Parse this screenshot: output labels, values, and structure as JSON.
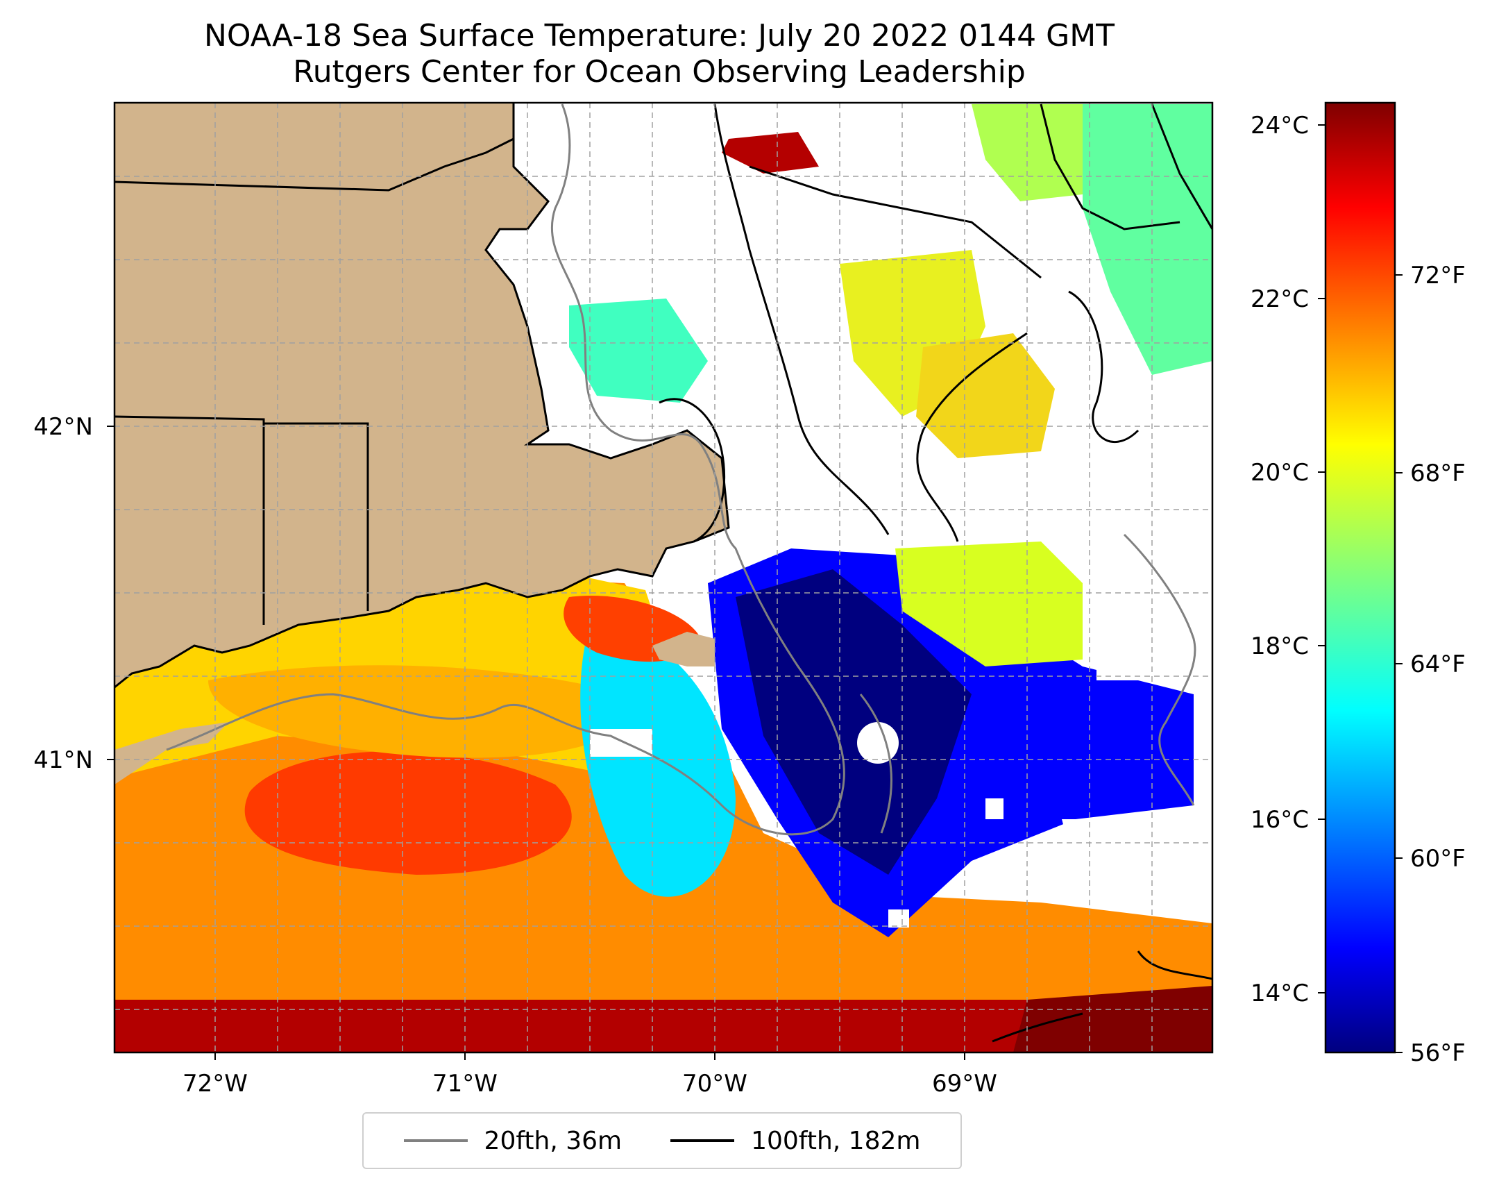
{
  "title": {
    "line1": "NOAA-18 Sea Surface Temperature: July 20 2022 0144 GMT",
    "line2": "Rutgers Center for Ocean Observing Leadership"
  },
  "map": {
    "lon_ticks": [
      "72°W",
      "71°W",
      "70°W",
      "69°W"
    ],
    "lat_ticks": [
      "42°N",
      "41°N"
    ],
    "land_color": "#d2b48c",
    "grid": true
  },
  "colorbar": {
    "celsius_ticks": [
      "24°C",
      "22°C",
      "20°C",
      "18°C",
      "16°C",
      "14°C"
    ],
    "fahrenheit_ticks": [
      "72°F",
      "68°F",
      "64°F",
      "60°F",
      "56°F"
    ],
    "colormap": "jet",
    "range_f": [
      56,
      75.5
    ]
  },
  "legend": {
    "items": [
      {
        "label": "20fth, 36m",
        "color": "#808080"
      },
      {
        "label": "100fth, 182m",
        "color": "#000000"
      }
    ]
  }
}
